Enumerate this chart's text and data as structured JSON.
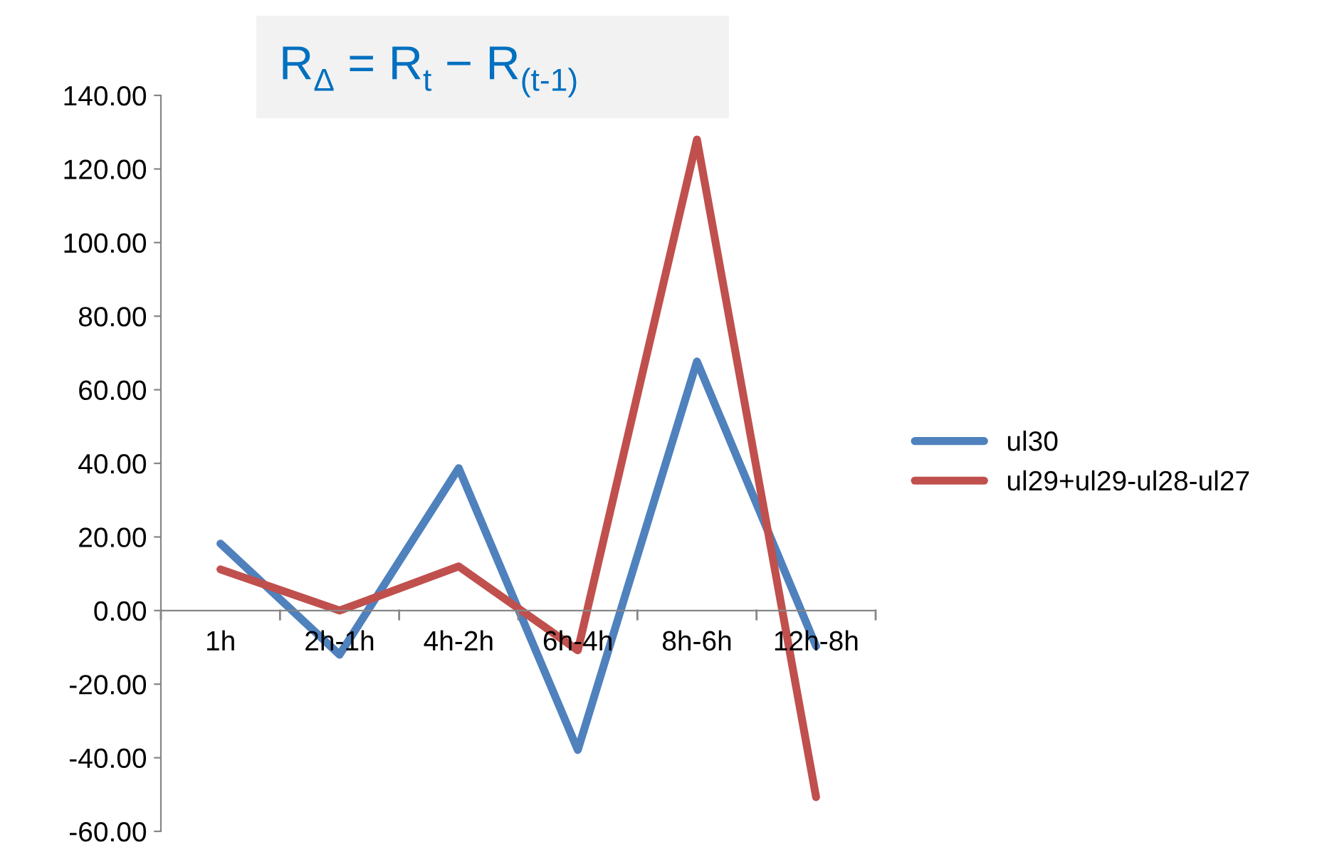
{
  "chart_data": {
    "type": "line",
    "title": "R$_{Δ}$ = R$_{t}$ − R$_{(t-1)}$",
    "categories": [
      "1h",
      "2h-1h",
      "4h-2h",
      "6h-4h",
      "8h-6h",
      "12h-8h"
    ],
    "series": [
      {
        "name": "ul30",
        "color": "#4f81bd",
        "values": [
          18.2,
          -12,
          38.7,
          -37.9,
          67.7,
          -9.7
        ]
      },
      {
        "name": "ul29+ul29-ul28-ul27",
        "color": "#c0504d",
        "values": [
          11.2,
          0,
          12,
          -10.8,
          128,
          -50.7
        ]
      }
    ],
    "ylim": [
      -60,
      140
    ],
    "yticks": [
      {
        "value": -60,
        "label": "-60.00"
      },
      {
        "value": -40,
        "label": "-40.00"
      },
      {
        "value": -20,
        "label": "-20.00"
      },
      {
        "value": 0,
        "label": "0.00"
      },
      {
        "value": 20,
        "label": "20.00"
      },
      {
        "value": 40,
        "label": "40.00"
      },
      {
        "value": 60,
        "label": "60.00"
      },
      {
        "value": 80,
        "label": "80.00"
      },
      {
        "value": 100,
        "label": "100.00"
      },
      {
        "value": 120,
        "label": "120.00"
      },
      {
        "value": 140,
        "label": "140.00"
      }
    ],
    "grid": false,
    "legend": "right",
    "marker": "none",
    "line_style": "solid"
  }
}
